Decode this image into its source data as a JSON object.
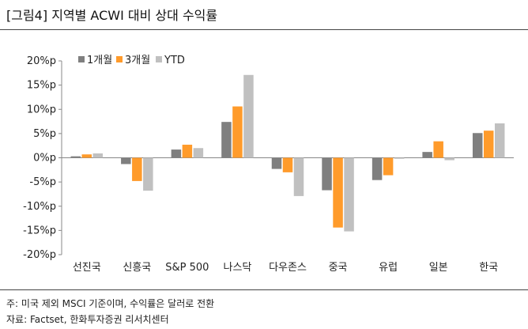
{
  "header": {
    "title": "[그림4] 지역별 ACWI 대비 상대 수익률"
  },
  "notes": {
    "note1": "주: 미국 제외 MSCI 기준이며, 수익률은 달러로 전환",
    "note2": "자료: Factset, 한화투자증권 리서치센터"
  },
  "chart_data": {
    "type": "bar",
    "categories": [
      "선진국",
      "신흥국",
      "S&P 500",
      "나스닥",
      "다우존스",
      "중국",
      "유럽",
      "일본",
      "한국"
    ],
    "series": [
      {
        "name": "1개월",
        "color": "#7f7f7f",
        "values": [
          0.3,
          -1.3,
          1.7,
          7.4,
          -2.3,
          -6.7,
          -4.6,
          1.2,
          5.1
        ]
      },
      {
        "name": "3개월",
        "color": "#ff9b2b",
        "values": [
          0.7,
          -4.8,
          2.7,
          10.6,
          -3.0,
          -14.4,
          -3.6,
          3.4,
          5.6
        ]
      },
      {
        "name": "YTD",
        "color": "#c0c0c0",
        "values": [
          0.9,
          -6.8,
          2.0,
          17.1,
          -7.9,
          -15.2,
          -0.2,
          -0.5,
          7.1
        ]
      }
    ],
    "yticks": [
      "20%p",
      "15%p",
      "10%p",
      "5%p",
      "0%p",
      "-5%p",
      "-10%p",
      "-15%p",
      "-20%p"
    ],
    "ylim": [
      -20,
      20
    ],
    "grid": false,
    "legend_position": "top-left"
  }
}
